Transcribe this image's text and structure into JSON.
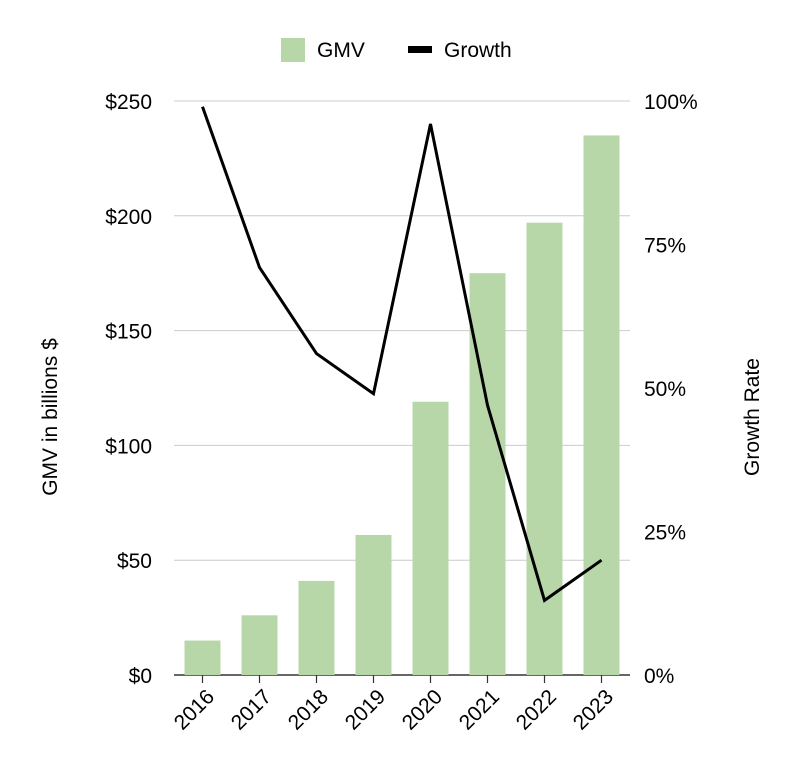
{
  "chart_data": {
    "type": "bar",
    "categories": [
      "2016",
      "2017",
      "2018",
      "2019",
      "2020",
      "2021",
      "2022",
      "2023"
    ],
    "series": [
      {
        "name": "GMV",
        "type": "bar",
        "axis": "left",
        "color": "#b7d7a8",
        "values": [
          15,
          26,
          41,
          61,
          119,
          175,
          197,
          235
        ]
      },
      {
        "name": "Growth",
        "type": "line",
        "axis": "right",
        "color": "#000000",
        "values": [
          99,
          71,
          56,
          49,
          96,
          47,
          13,
          20
        ]
      }
    ],
    "ylabel": "GMV in billions $",
    "y2label": "Growth Rate",
    "ylim": [
      0,
      250
    ],
    "y2lim": [
      0,
      100
    ],
    "yticks": [
      "$0",
      "$50",
      "$100",
      "$150",
      "$200",
      "$250"
    ],
    "y2ticks": [
      "0%",
      "25%",
      "50%",
      "75%",
      "100%"
    ],
    "legend": {
      "position": "top",
      "items": [
        "GMV",
        "Growth"
      ]
    },
    "grid": true
  }
}
